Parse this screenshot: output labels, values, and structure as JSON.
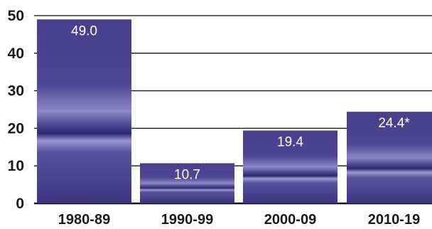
{
  "chart_data": {
    "type": "bar",
    "categories": [
      "1980-89",
      "1990-99",
      "2000-09",
      "2010-19"
    ],
    "values": [
      49.0,
      10.7,
      19.4,
      24.4
    ],
    "value_labels": [
      "49.0",
      "10.7",
      "19.4",
      "24.4*"
    ],
    "y_ticks": [
      "0",
      "10",
      "20",
      "30",
      "40",
      "50"
    ],
    "ylim": [
      0,
      50
    ],
    "title": "",
    "xlabel": "",
    "ylabel": "",
    "grid": true,
    "bar_color": "#4a3f8c",
    "bar_highlight": "#8e86c6"
  }
}
